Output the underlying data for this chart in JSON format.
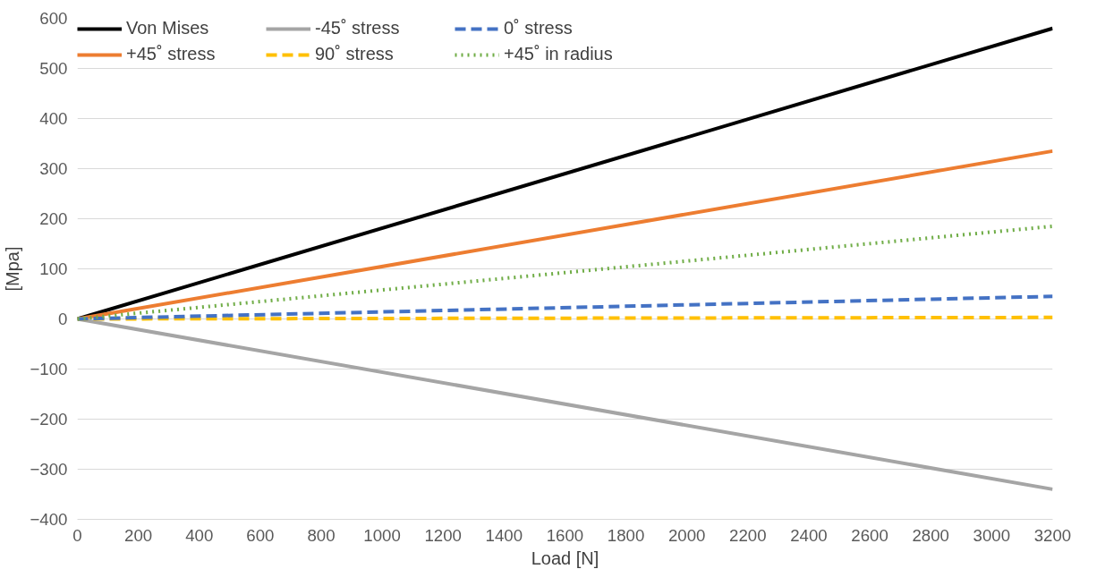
{
  "chart_data": {
    "type": "line",
    "xlabel": "Load [N]",
    "ylabel": "[Mpa]",
    "x": [
      0,
      3200
    ],
    "series": [
      {
        "name": "Von Mises",
        "color": "#000000",
        "values": [
          0,
          580
        ],
        "line_style": "solid"
      },
      {
        "name": "+45˚ stress",
        "color": "#ed7d31",
        "values": [
          0,
          335
        ],
        "line_style": "solid"
      },
      {
        "name": "-45˚ stress",
        "color": "#a5a5a5",
        "values": [
          0,
          -340
        ],
        "line_style": "solid"
      },
      {
        "name": "90˚ stress",
        "color": "#ffc000",
        "values": [
          0,
          3
        ],
        "line_style": "dashed"
      },
      {
        "name": "0˚ stress",
        "color": "#4472c4",
        "values": [
          0,
          45
        ],
        "line_style": "dashed"
      },
      {
        "name": "+45˚ in radius",
        "color": "#70ad47",
        "values": [
          0,
          185
        ],
        "line_style": "dotted"
      }
    ],
    "xlim": [
      0,
      3200
    ],
    "xticks": [
      0,
      200,
      400,
      600,
      800,
      1000,
      1200,
      1400,
      1600,
      1800,
      2000,
      2200,
      2400,
      2600,
      2800,
      3000,
      3200
    ],
    "ylim": [
      -400,
      600
    ],
    "yticks": [
      -400,
      -300,
      -200,
      -100,
      0,
      100,
      200,
      300,
      400,
      500,
      600
    ],
    "grid": "y",
    "legend": "top"
  }
}
